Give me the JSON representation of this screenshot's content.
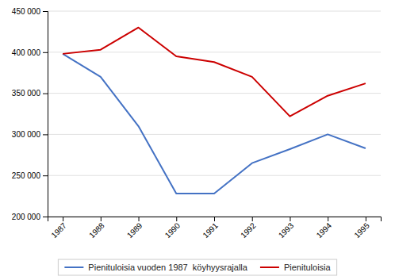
{
  "chart_data": {
    "type": "line",
    "x": [
      1987,
      1988,
      1989,
      1990,
      1991,
      1992,
      1993,
      1994,
      1995
    ],
    "series": [
      {
        "name": "Pienituloisia vuoden 1987  köyhyysrajalla",
        "color": "#4472C4",
        "values": [
          398000,
          370000,
          310000,
          228000,
          228000,
          265000,
          282000,
          300000,
          283000
        ]
      },
      {
        "name": "Pienituloisia",
        "color": "#CC0000",
        "values": [
          398000,
          403000,
          430000,
          395000,
          388000,
          370000,
          322000,
          347000,
          362000
        ]
      }
    ],
    "xlim": [
      1986.6,
      1995.4
    ],
    "xticks": [
      1987,
      1988,
      1989,
      1990,
      1991,
      1992,
      1993,
      1994,
      1995
    ],
    "ylim": [
      200000,
      450000
    ],
    "yticks": [
      {
        "value": 200000,
        "label": "200 000"
      },
      {
        "value": 250000,
        "label": "250 000"
      },
      {
        "value": 300000,
        "label": "300 000"
      },
      {
        "value": 350000,
        "label": "350 000"
      },
      {
        "value": 400000,
        "label": "400 000"
      },
      {
        "value": 450000,
        "label": "450 000"
      }
    ],
    "grid": true,
    "legend": "bottom"
  }
}
